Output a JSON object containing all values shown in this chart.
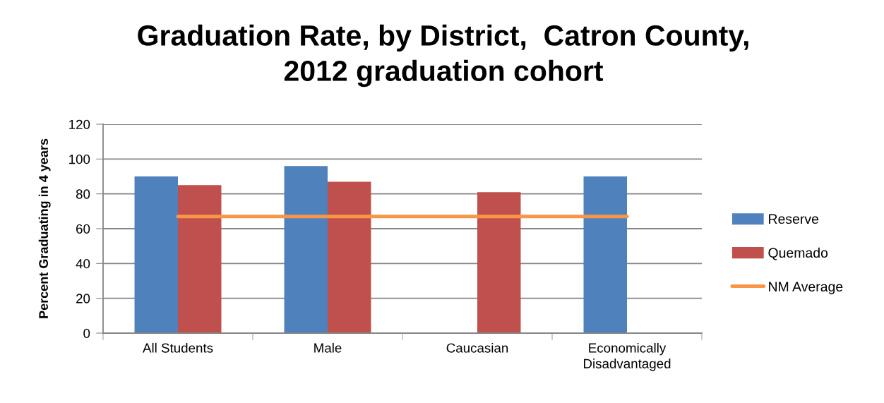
{
  "chart_data": {
    "type": "bar",
    "title": "Graduation Rate, by District,  Catron County,\n2012 graduation cohort",
    "ylabel": "Percent Graduating in 4 years",
    "categories": [
      "All Students",
      "Male",
      "Caucasian",
      "Economically\nDisadvantaged"
    ],
    "series": [
      {
        "name": "Reserve",
        "color": "#4f81bd",
        "values": [
          90,
          96,
          null,
          90
        ]
      },
      {
        "name": "Quemado",
        "color": "#c0504d",
        "values": [
          85,
          87,
          81,
          null
        ]
      },
      {
        "name": "NM Average",
        "type": "line",
        "color": "#f79646",
        "values": [
          67,
          67,
          67,
          67
        ]
      }
    ],
    "ylim": [
      0,
      120
    ],
    "yticks": [
      0,
      20,
      40,
      60,
      80,
      100,
      120
    ],
    "grid": "y",
    "legend": "right",
    "marker": "none",
    "line_style": "solid"
  }
}
